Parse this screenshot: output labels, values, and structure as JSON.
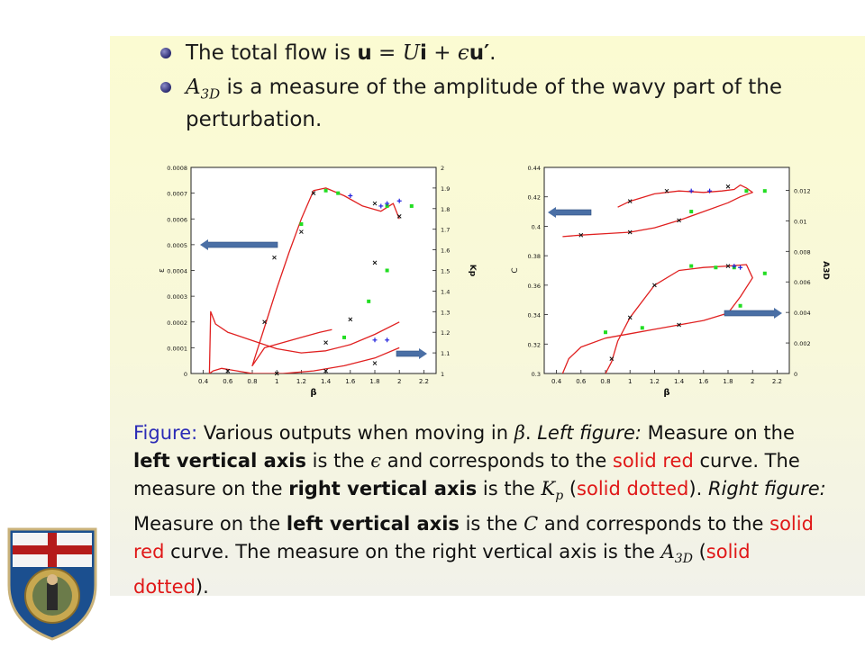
{
  "bullets": {
    "b1_prefix": "The total flow is ",
    "b1_u": "u",
    "b1_eq": " = ",
    "b1_U": "U",
    "b1_i": "i",
    "b1_plus": " + ",
    "b1_eps": "ϵ",
    "b1_uprime": "u′",
    "b1_dot": ".",
    "b2_A": "A",
    "b2_sub": "3D",
    "b2_line1": " is a measure of the amplitude of the wavy part of the",
    "b2_line2": "perturbation."
  },
  "caption": {
    "figure_label": "Figure:",
    "l1_a": " Various outputs when moving in ",
    "beta": "β",
    "l1_b": ". ",
    "left_figure": "Left figure:",
    "l1_c": " Measure on the",
    "l2_bold": "left vertical axis",
    "l2_a": " is the ",
    "eps": "ϵ",
    "l2_b": " and corresponds to the ",
    "l2_red": "solid red",
    "l2_c": " curve. The",
    "l3_a": "measure on the ",
    "l3_bold": "right vertical axis",
    "l3_b": " is the ",
    "K": "K",
    "p": "p",
    "l3_c": " (",
    "l3_red": "solid dotted",
    "l3_d": "). ",
    "right_figure": "Right figure:",
    "l4_a": "Measure on the ",
    "l4_bold": "left vertical axis",
    "l4_b": " is the ",
    "C": "C",
    "l4_c": " and corresponds to the ",
    "l4_red": "solid",
    "l5_red": "red",
    "l5_a": " curve. The measure on the right vertical axis is the ",
    "A": "A",
    "sub3d": "3D",
    "l5_b": " (",
    "l5_red2": "solid",
    "l6_red": "dotted",
    "l6_a": ")."
  },
  "colors": {
    "curve": "#e02020",
    "marker_black": "#111111",
    "marker_green": "#22dd22",
    "marker_blue": "#2222dd",
    "arrow": "#4a6fa5",
    "caption_blue": "#2b2bb6",
    "caption_red": "#e01818"
  },
  "chart_data": [
    {
      "type": "line",
      "xlabel": "β",
      "ylabel": "ε",
      "y2label": "Kp",
      "xlim": [
        0.3,
        2.3
      ],
      "ylim": [
        0,
        0.0008
      ],
      "y2lim": [
        1,
        2
      ],
      "xticks": [
        "0.4",
        "0.6",
        "0.8",
        "1",
        "1.2",
        "1.4",
        "1.6",
        "1.8",
        "2",
        "2.2"
      ],
      "yticks": [
        "0",
        "0.0001",
        "0.0002",
        "0.0003",
        "0.0004",
        "0.0005",
        "0.0006",
        "0.0007",
        "0.0008"
      ],
      "y2ticks": [
        "1",
        "1.1",
        "1.2",
        "1.3",
        "1.4",
        "1.5",
        "1.6",
        "1.7",
        "1.8",
        "1.9",
        "2"
      ],
      "arrows": [
        "left",
        "right"
      ],
      "series": [
        {
          "role": "epsilon_solid",
          "x": [
            2.0,
            1.95,
            1.85,
            1.7,
            1.55,
            1.4,
            1.3,
            1.2,
            1.1,
            1.0,
            0.9,
            0.82,
            0.8,
            0.9,
            1.05,
            1.2,
            1.35,
            1.45
          ],
          "y": [
            0.0006,
            0.00066,
            0.00063,
            0.00065,
            0.00069,
            0.00072,
            0.00071,
            0.0006,
            0.00047,
            0.00033,
            0.00018,
            6e-05,
            3e-05,
            0.0001,
            0.00012,
            0.00014,
            0.00016,
            0.00017
          ]
        },
        {
          "role": "epsilon_solid_2",
          "x": [
            0.45,
            0.48,
            0.55,
            0.8,
            1.05,
            1.3,
            1.55,
            1.8,
            2.0
          ],
          "y": [
            0.0,
            1e-05,
            2e-05,
            0.0,
            0.0,
            1e-05,
            3e-05,
            6e-05,
            0.0001
          ]
        },
        {
          "role": "kp_solid",
          "x": [
            0.45,
            0.46,
            0.5,
            0.6,
            0.8,
            1.0,
            1.2,
            1.4,
            1.6,
            1.8,
            2.0
          ],
          "y": [
            1.0,
            1.3,
            1.24,
            1.2,
            1.16,
            1.12,
            1.1,
            1.11,
            1.14,
            1.19,
            1.25
          ]
        }
      ],
      "markers_black": [
        [
          0.9,
          0.0002
        ],
        [
          0.98,
          0.00045
        ],
        [
          1.2,
          0.00055
        ],
        [
          1.3,
          0.0007
        ],
        [
          1.8,
          0.00066
        ],
        [
          2.0,
          0.00061
        ],
        [
          1.8,
          0.00043
        ],
        [
          1.6,
          0.00021
        ],
        [
          1.4,
          0.00012
        ],
        [
          0.6,
          1e-05
        ],
        [
          1.0,
          0.0
        ],
        [
          1.4,
          1e-05
        ],
        [
          1.8,
          4e-05
        ]
      ],
      "markers_green": [
        [
          1.2,
          0.00058
        ],
        [
          1.4,
          0.00071
        ],
        [
          1.5,
          0.0007
        ],
        [
          1.9,
          0.00065
        ],
        [
          2.1,
          0.00065
        ],
        [
          1.55,
          0.00014
        ],
        [
          1.75,
          0.00028
        ],
        [
          1.9,
          0.0004
        ]
      ],
      "markers_blue": [
        [
          1.6,
          0.00069
        ],
        [
          1.85,
          0.00065
        ],
        [
          1.9,
          0.00066
        ],
        [
          2.0,
          0.00067
        ],
        [
          1.8,
          0.00013
        ],
        [
          1.9,
          0.00013
        ]
      ]
    },
    {
      "type": "line",
      "xlabel": "β",
      "ylabel": "C",
      "y2label": "A3D",
      "xlim": [
        0.3,
        2.3
      ],
      "ylim": [
        0.3,
        0.44
      ],
      "y2lim": [
        0,
        0.0135
      ],
      "xticks": [
        "0.4",
        "0.6",
        "0.8",
        "1",
        "1.2",
        "1.4",
        "1.6",
        "1.8",
        "2",
        "2.2"
      ],
      "yticks": [
        "0.3",
        "0.32",
        "0.34",
        "0.36",
        "0.38",
        "0.4",
        "0.42",
        "0.44"
      ],
      "y2ticks": [
        "0",
        "0.002",
        "0.004",
        "0.006",
        "0.008",
        "0.01",
        "0.012"
      ],
      "arrows": [
        "left",
        "right"
      ],
      "series": [
        {
          "role": "C_upper_solid",
          "x": [
            0.9,
            1.0,
            1.2,
            1.4,
            1.6,
            1.75,
            1.85,
            1.9,
            1.95,
            2.0,
            1.9,
            1.8,
            1.6,
            1.4,
            1.2,
            1.0,
            0.8,
            0.6,
            0.45
          ],
          "y": [
            0.413,
            0.417,
            0.422,
            0.424,
            0.423,
            0.424,
            0.425,
            0.428,
            0.426,
            0.423,
            0.42,
            0.416,
            0.41,
            0.404,
            0.399,
            0.396,
            0.395,
            0.394,
            0.393
          ]
        },
        {
          "role": "C_lower_solid",
          "x": [
            0.45,
            0.5,
            0.6,
            0.8,
            1.0,
            1.2,
            1.4,
            1.6,
            1.8,
            1.9,
            2.0,
            1.95,
            1.8,
            1.6,
            1.4,
            1.2,
            1.0,
            0.9,
            0.85,
            0.8
          ],
          "y": [
            0.3,
            0.31,
            0.318,
            0.324,
            0.327,
            0.33,
            0.333,
            0.336,
            0.341,
            0.352,
            0.365,
            0.374,
            0.373,
            0.372,
            0.37,
            0.36,
            0.338,
            0.322,
            0.308,
            0.3
          ]
        }
      ],
      "markers_black": [
        [
          1.0,
          0.417
        ],
        [
          1.3,
          0.424
        ],
        [
          1.8,
          0.427
        ],
        [
          1.4,
          0.404
        ],
        [
          1.0,
          0.396
        ],
        [
          0.6,
          0.394
        ],
        [
          1.0,
          0.338
        ],
        [
          1.2,
          0.36
        ],
        [
          1.8,
          0.373
        ],
        [
          0.85,
          0.31
        ],
        [
          1.4,
          0.333
        ],
        [
          1.8,
          0.341
        ]
      ],
      "markers_green": [
        [
          1.5,
          0.373
        ],
        [
          1.7,
          0.372
        ],
        [
          1.85,
          0.372
        ],
        [
          2.1,
          0.368
        ],
        [
          1.9,
          0.346
        ],
        [
          1.5,
          0.41
        ],
        [
          1.95,
          0.424
        ],
        [
          2.1,
          0.424
        ],
        [
          0.8,
          0.328
        ],
        [
          1.1,
          0.331
        ]
      ],
      "markers_blue": [
        [
          1.5,
          0.424
        ],
        [
          1.65,
          0.424
        ],
        [
          1.85,
          0.373
        ],
        [
          1.9,
          0.372
        ]
      ]
    }
  ]
}
